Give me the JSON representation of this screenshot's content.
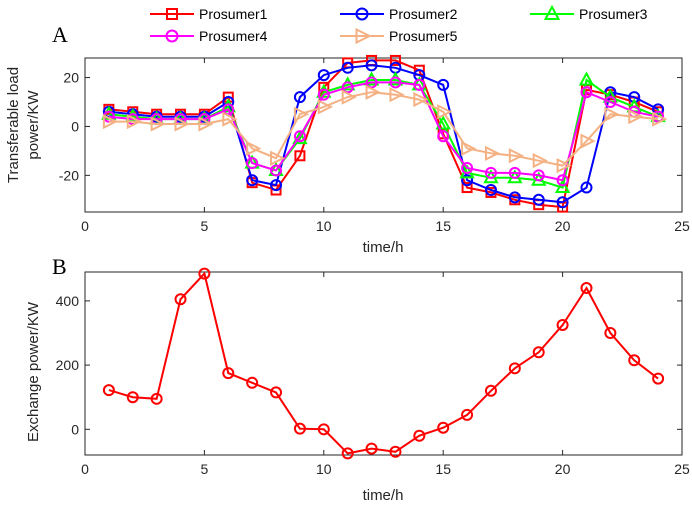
{
  "chart_data": [
    {
      "panel_label": "A",
      "type": "line",
      "xlabel": "time/h",
      "ylabel_lines": [
        "Transferable load",
        "power/KW"
      ],
      "xlim": [
        0,
        25
      ],
      "ylim": [
        -35,
        28
      ],
      "xticks": [
        0,
        5,
        10,
        15,
        20,
        25
      ],
      "yticks": [
        -20,
        0,
        20
      ],
      "legend": {
        "placement": "top"
      },
      "x": [
        1,
        2,
        3,
        4,
        5,
        6,
        7,
        8,
        9,
        10,
        11,
        12,
        13,
        14,
        15,
        16,
        17,
        18,
        19,
        20,
        21,
        22,
        23,
        24
      ],
      "series": [
        {
          "name": "Prosumer1",
          "color": "#ff0000",
          "marker": "square",
          "values": [
            7,
            6,
            5,
            5,
            5,
            12,
            -23,
            -26,
            -12,
            16,
            26,
            27,
            27,
            23,
            -3,
            -25,
            -27,
            -30,
            -32,
            -33,
            15,
            13,
            10,
            6
          ]
        },
        {
          "name": "Prosumer2",
          "color": "#0000ff",
          "marker": "circle",
          "values": [
            6,
            5,
            4,
            4,
            4,
            10,
            -22,
            -24,
            12,
            21,
            24,
            25,
            24,
            21,
            17,
            -22,
            -26,
            -29,
            -30,
            -31,
            -25,
            14,
            12,
            7
          ]
        },
        {
          "name": "Prosumer3",
          "color": "#00ff00",
          "marker": "triangle",
          "values": [
            5,
            4,
            3,
            3,
            3,
            8,
            -15,
            -18,
            -5,
            14,
            17,
            19,
            19,
            17,
            1,
            -19,
            -21,
            -21,
            -22,
            -25,
            19,
            12,
            8,
            4
          ]
        },
        {
          "name": "Prosumer4",
          "color": "#ff00ff",
          "marker": "circle",
          "values": [
            4,
            3,
            3,
            3,
            3,
            7,
            -15,
            -18,
            -4,
            13,
            16,
            18,
            18,
            17,
            -4,
            -17,
            -19,
            -19,
            -20,
            -22,
            14,
            10,
            6,
            4
          ]
        },
        {
          "name": "Prosumer5",
          "color": "#f4b183",
          "marker": "triangle-right",
          "values": [
            2,
            2,
            1,
            1,
            1,
            3,
            -9,
            -13,
            5,
            8,
            12,
            14,
            13,
            11,
            6,
            -9,
            -11,
            -12,
            -14,
            -16,
            -6,
            5,
            4,
            3
          ]
        }
      ]
    },
    {
      "panel_label": "B",
      "type": "line",
      "xlabel": "time/h",
      "ylabel": "Exchange power/KW",
      "xlim": [
        0,
        25
      ],
      "ylim": [
        -80,
        490
      ],
      "xticks": [
        0,
        5,
        10,
        15,
        20,
        25
      ],
      "yticks": [
        0,
        200,
        400
      ],
      "x": [
        1,
        2,
        3,
        4,
        5,
        6,
        7,
        8,
        9,
        10,
        11,
        12,
        13,
        14,
        15,
        16,
        17,
        18,
        19,
        20,
        21,
        22,
        23,
        24
      ],
      "series": [
        {
          "name": "Exchange power",
          "color": "#ff0000",
          "marker": "circle",
          "values": [
            122,
            100,
            95,
            405,
            485,
            175,
            145,
            115,
            2,
            0,
            -75,
            -60,
            -70,
            -20,
            5,
            45,
            120,
            190,
            240,
            325,
            440,
            300,
            215,
            158
          ]
        }
      ]
    }
  ]
}
